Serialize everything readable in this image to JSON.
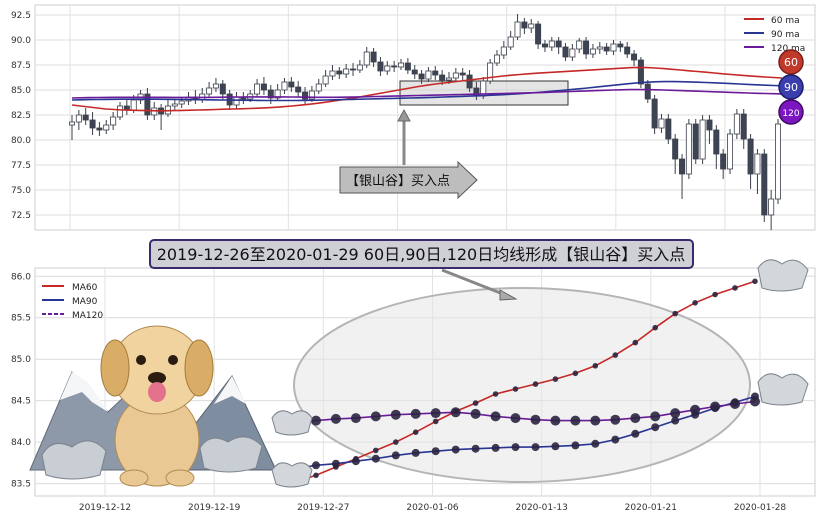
{
  "chart_data": [
    {
      "type": "candlestick",
      "ylim": [
        71.0,
        93.5
      ],
      "yticks": [
        "72.5",
        "75.0",
        "77.5",
        "80.0",
        "82.5",
        "85.0",
        "87.5",
        "90.0",
        "92.5"
      ],
      "grid": true,
      "legend_position": "top-right",
      "legend": [
        "60 ma",
        "90 ma",
        "120 ma"
      ],
      "badges": [
        "60",
        "90",
        "120"
      ],
      "callout": "【银山谷】买入点",
      "candles": [
        [
          81.5,
          81.8,
          80.0,
          82.5
        ],
        [
          81.8,
          82.5,
          81.0,
          83.0
        ],
        [
          82.5,
          82.0,
          81.5,
          83.2
        ],
        [
          82.0,
          81.2,
          80.5,
          82.8
        ],
        [
          81.2,
          81.0,
          80.4,
          81.8
        ],
        [
          81.0,
          81.5,
          80.6,
          82.0
        ],
        [
          81.5,
          82.3,
          81.0,
          82.8
        ],
        [
          82.3,
          83.4,
          82.0,
          83.8
        ],
        [
          83.4,
          83.0,
          82.5,
          84.0
        ],
        [
          83.0,
          84.0,
          82.7,
          84.5
        ],
        [
          84.0,
          84.6,
          83.6,
          85.0
        ],
        [
          84.6,
          82.5,
          82.0,
          85.2
        ],
        [
          82.5,
          83.2,
          82.0,
          83.8
        ],
        [
          83.2,
          82.6,
          81.0,
          83.6
        ],
        [
          82.6,
          83.4,
          82.3,
          84.0
        ],
        [
          83.4,
          83.6,
          82.9,
          84.1
        ],
        [
          83.6,
          83.9,
          83.2,
          84.3
        ],
        [
          83.9,
          84.3,
          83.5,
          84.8
        ],
        [
          84.3,
          84.0,
          83.6,
          85.0
        ],
        [
          84.0,
          84.6,
          83.7,
          85.2
        ],
        [
          84.6,
          85.2,
          84.2,
          85.8
        ],
        [
          85.2,
          85.6,
          84.8,
          86.2
        ],
        [
          85.6,
          84.6,
          84.0,
          86.0
        ],
        [
          84.6,
          83.5,
          83.0,
          85.0
        ],
        [
          83.5,
          84.3,
          83.1,
          84.8
        ],
        [
          84.3,
          84.1,
          83.6,
          84.8
        ],
        [
          84.1,
          84.6,
          83.8,
          85.0
        ],
        [
          84.6,
          85.6,
          84.3,
          86.1
        ],
        [
          85.6,
          85.0,
          84.5,
          86.3
        ],
        [
          85.0,
          84.2,
          83.6,
          85.5
        ],
        [
          84.2,
          85.0,
          83.9,
          85.6
        ],
        [
          85.0,
          85.8,
          84.6,
          86.2
        ],
        [
          85.8,
          85.3,
          84.8,
          86.3
        ],
        [
          85.3,
          84.8,
          84.3,
          85.9
        ],
        [
          84.8,
          84.1,
          83.6,
          85.3
        ],
        [
          84.1,
          84.9,
          83.8,
          85.4
        ],
        [
          84.9,
          85.6,
          84.6,
          86.1
        ],
        [
          85.6,
          86.4,
          85.3,
          87.0
        ],
        [
          86.4,
          86.9,
          86.0,
          87.5
        ],
        [
          86.9,
          86.6,
          86.1,
          87.3
        ],
        [
          86.6,
          87.1,
          86.2,
          87.6
        ],
        [
          87.1,
          87.0,
          86.4,
          87.7
        ],
        [
          87.0,
          87.5,
          86.7,
          88.0
        ],
        [
          87.5,
          88.8,
          87.2,
          89.3
        ],
        [
          88.8,
          87.8,
          87.3,
          89.2
        ],
        [
          87.8,
          86.9,
          86.4,
          88.3
        ],
        [
          86.9,
          87.4,
          86.5,
          87.9
        ],
        [
          87.4,
          87.3,
          86.8,
          87.9
        ],
        [
          87.3,
          87.7,
          87.0,
          88.1
        ],
        [
          87.7,
          87.0,
          86.6,
          88.2
        ],
        [
          87.0,
          86.6,
          86.1,
          87.5
        ],
        [
          86.6,
          86.1,
          85.6,
          87.0
        ],
        [
          86.1,
          86.9,
          85.8,
          87.3
        ],
        [
          86.9,
          86.5,
          86.0,
          87.4
        ],
        [
          86.5,
          86.0,
          85.5,
          87.0
        ],
        [
          86.0,
          86.2,
          85.6,
          86.8
        ],
        [
          86.2,
          86.7,
          85.9,
          87.2
        ],
        [
          86.7,
          86.5,
          86.0,
          87.2
        ],
        [
          86.5,
          85.2,
          84.8,
          87.0
        ],
        [
          85.2,
          84.4,
          84.0,
          85.8
        ],
        [
          84.4,
          85.9,
          84.1,
          86.3
        ],
        [
          85.9,
          87.7,
          85.6,
          88.1
        ],
        [
          87.7,
          88.5,
          87.4,
          89.0
        ],
        [
          88.5,
          89.3,
          88.1,
          89.9
        ],
        [
          89.3,
          90.3,
          89.0,
          90.9
        ],
        [
          90.3,
          91.8,
          90.0,
          92.6
        ],
        [
          91.8,
          91.2,
          90.6,
          92.2
        ],
        [
          91.2,
          91.6,
          90.7,
          92.1
        ],
        [
          91.6,
          89.6,
          89.1,
          91.9
        ],
        [
          89.6,
          89.3,
          88.8,
          90.0
        ],
        [
          89.3,
          89.9,
          88.9,
          90.3
        ],
        [
          89.9,
          89.3,
          88.6,
          90.3
        ],
        [
          89.3,
          88.3,
          87.9,
          89.7
        ],
        [
          88.3,
          89.1,
          87.9,
          89.6
        ],
        [
          89.1,
          89.9,
          88.7,
          90.2
        ],
        [
          89.9,
          88.6,
          88.1,
          90.3
        ],
        [
          88.6,
          89.1,
          88.2,
          89.6
        ],
        [
          89.1,
          89.3,
          88.6,
          89.8
        ],
        [
          89.3,
          88.9,
          88.5,
          89.7
        ],
        [
          88.9,
          89.6,
          88.5,
          90.0
        ],
        [
          89.6,
          89.3,
          88.8,
          89.9
        ],
        [
          89.3,
          88.6,
          88.2,
          89.8
        ],
        [
          88.6,
          88.0,
          87.4,
          89.0
        ],
        [
          88.0,
          85.6,
          85.2,
          88.3
        ],
        [
          85.6,
          84.1,
          83.7,
          86.0
        ],
        [
          84.1,
          81.2,
          80.6,
          84.5
        ],
        [
          81.2,
          82.1,
          80.7,
          82.6
        ],
        [
          82.1,
          80.1,
          79.6,
          82.6
        ],
        [
          80.1,
          78.1,
          76.6,
          80.6
        ],
        [
          78.1,
          76.6,
          74.1,
          78.6
        ],
        [
          76.6,
          81.6,
          76.1,
          82.1
        ],
        [
          81.6,
          78.1,
          77.6,
          82.1
        ],
        [
          78.1,
          82.0,
          77.6,
          82.5
        ],
        [
          82.0,
          81.0,
          79.6,
          82.5
        ],
        [
          81.0,
          78.6,
          77.1,
          81.5
        ],
        [
          78.6,
          77.1,
          76.1,
          79.1
        ],
        [
          77.1,
          80.6,
          76.6,
          81.1
        ],
        [
          80.6,
          82.6,
          80.1,
          83.1
        ],
        [
          82.6,
          80.1,
          79.1,
          83.1
        ],
        [
          80.1,
          76.6,
          75.1,
          80.6
        ],
        [
          76.6,
          78.6,
          74.6,
          79.1
        ],
        [
          78.6,
          72.5,
          71.8,
          79.1
        ],
        [
          72.5,
          74.1,
          71.0,
          75.0
        ],
        [
          74.1,
          81.6,
          73.6,
          82.1
        ]
      ],
      "series": [
        {
          "name": "60 ma",
          "color": "#c62828",
          "y": [
            83.5,
            83.4,
            83.3,
            83.2,
            83.1,
            83.05,
            83.0,
            82.98,
            82.96,
            82.94,
            82.92,
            82.92,
            82.94,
            82.96,
            82.98,
            83.0,
            83.02,
            83.05,
            83.08,
            83.1,
            83.12,
            83.15,
            83.18,
            83.22,
            83.27,
            83.33,
            83.4,
            83.48,
            83.57,
            83.67,
            83.78,
            83.9,
            84.03,
            84.16,
            84.3,
            84.45,
            84.6,
            84.75,
            84.9,
            85.05,
            85.2,
            85.35,
            85.48,
            85.6,
            85.7,
            85.8,
            85.9,
            86.0,
            86.1,
            86.2,
            86.3,
            86.4,
            86.48,
            86.55,
            86.62,
            86.68,
            86.73,
            86.78,
            86.83,
            86.88,
            86.93,
            86.98,
            87.03,
            87.08,
            87.13,
            87.18,
            87.23,
            87.26,
            87.24,
            87.2,
            87.14,
            87.07,
            87.0,
            86.92,
            86.85,
            86.78,
            86.7,
            86.62,
            86.55,
            86.48,
            86.42,
            86.36,
            86.3,
            86.25,
            86.2
          ]
        },
        {
          "name": "90 ma",
          "color": "#283593",
          "y": [
            84.0,
            84.02,
            84.04,
            84.05,
            84.06,
            84.07,
            84.08,
            84.08,
            84.08,
            84.08,
            84.08,
            84.07,
            84.06,
            84.05,
            84.04,
            84.03,
            84.02,
            84.01,
            84.0,
            83.99,
            83.98,
            83.97,
            83.96,
            83.95,
            83.95,
            83.95,
            83.95,
            83.96,
            83.97,
            83.98,
            84.0,
            84.02,
            84.04,
            84.06,
            84.08,
            84.1,
            84.12,
            84.14,
            84.16,
            84.18,
            84.2,
            84.22,
            84.24,
            84.27,
            84.3,
            84.33,
            84.36,
            84.39,
            84.42,
            84.45,
            84.49,
            84.53,
            84.58,
            84.63,
            84.69,
            84.75,
            84.82,
            84.89,
            84.96,
            85.04,
            85.12,
            85.2,
            85.29,
            85.38,
            85.47,
            85.56,
            85.64,
            85.72,
            85.78,
            85.82,
            85.84,
            85.84,
            85.83,
            85.81,
            85.78,
            85.75,
            85.72,
            85.68,
            85.64,
            85.6,
            85.56,
            85.52,
            85.48,
            85.45,
            85.42
          ]
        },
        {
          "name": "120 ma",
          "color": "#6a1b9a",
          "y": [
            84.2,
            84.22,
            84.24,
            84.25,
            84.26,
            84.27,
            84.27,
            84.27,
            84.27,
            84.27,
            84.27,
            84.27,
            84.26,
            84.26,
            84.26,
            84.26,
            84.26,
            84.27,
            84.28,
            84.29,
            84.3,
            84.31,
            84.31,
            84.31,
            84.31,
            84.31,
            84.3,
            84.29,
            84.28,
            84.27,
            84.27,
            84.27,
            84.28,
            84.29,
            84.31,
            84.33,
            84.35,
            84.37,
            84.39,
            84.41,
            84.43,
            84.45,
            84.47,
            84.49,
            84.51,
            84.53,
            84.55,
            84.57,
            84.59,
            84.61,
            84.63,
            84.65,
            84.67,
            84.69,
            84.71,
            84.73,
            84.76,
            84.79,
            84.82,
            84.85,
            84.88,
            84.91,
            84.94,
            84.97,
            85.0,
            85.02,
            85.04,
            85.05,
            85.04,
            85.02,
            85.0,
            84.97,
            84.94,
            84.91,
            84.88,
            84.85,
            84.82,
            84.79,
            84.76,
            84.73,
            84.7,
            84.67,
            84.65,
            84.63,
            84.61
          ]
        }
      ]
    },
    {
      "type": "line",
      "title": "2019-12-26至2020-01-29 60日,90日,120日均线形成【银山谷】买入点",
      "ylim": [
        83.35,
        86.1
      ],
      "yticks": [
        "83.5",
        "84.0",
        "84.5",
        "85.0",
        "85.5",
        "86.0"
      ],
      "xticks": [
        "2019-12-12",
        "2019-12-19",
        "2019-12-27",
        "2020-01-06",
        "2020-01-13",
        "2020-01-21",
        "2020-01-28"
      ],
      "grid": true,
      "legend_position": "top-left",
      "series": [
        {
          "name": "MA60",
          "color": "#c62828",
          "y": [
            83.52,
            83.6,
            83.7,
            83.8,
            83.9,
            84.0,
            84.12,
            84.25,
            84.37,
            84.47,
            84.58,
            84.64,
            84.7,
            84.76,
            84.83,
            84.92,
            85.05,
            85.2,
            85.38,
            85.55,
            85.68,
            85.78,
            85.86,
            85.94
          ]
        },
        {
          "name": "MA90",
          "color": "#283593",
          "y": [
            83.68,
            83.72,
            83.74,
            83.77,
            83.8,
            83.84,
            83.87,
            83.89,
            83.91,
            83.92,
            83.93,
            83.94,
            83.94,
            83.95,
            83.96,
            83.98,
            84.03,
            84.1,
            84.18,
            84.26,
            84.33,
            84.41,
            84.48,
            84.55
          ]
        },
        {
          "name": "MA120",
          "color": "#6a1b9a",
          "y": [
            84.24,
            84.26,
            84.28,
            84.29,
            84.31,
            84.33,
            84.34,
            84.35,
            84.36,
            84.34,
            84.31,
            84.29,
            84.27,
            84.26,
            84.26,
            84.26,
            84.27,
            84.29,
            84.31,
            84.35,
            84.39,
            84.43,
            84.46,
            84.49
          ]
        }
      ]
    }
  ]
}
